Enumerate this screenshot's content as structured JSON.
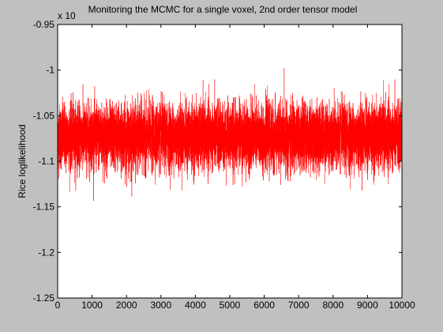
{
  "chart_data": {
    "type": "line",
    "title": "Monitoring the MCMC for a single voxel,  2nd order tensor model",
    "xlabel": "",
    "ylabel": "Rice loglikelihood",
    "exponent_label": "x 10",
    "xlim": [
      0,
      10000
    ],
    "ylim": [
      -1.25,
      -0.95
    ],
    "xticks": [
      0,
      1000,
      2000,
      3000,
      4000,
      5000,
      6000,
      7000,
      8000,
      9000,
      10000
    ],
    "xtick_labels": [
      "0",
      "1000",
      "2000",
      "3000",
      "4000",
      "5000",
      "6000",
      "7000",
      "8000",
      "9000",
      "10000"
    ],
    "yticks": [
      -1.25,
      -1.2,
      -1.15,
      -1.1,
      -1.05,
      -1,
      -0.95
    ],
    "ytick_labels": [
      "-1.25",
      "-1.2",
      "-1.15",
      "-1.1",
      "-1.05",
      "-1",
      "-0.95"
    ],
    "series": [
      {
        "color": "#ff0000",
        "n_points": 10000,
        "mean": -1.073,
        "band_low": -1.11,
        "band_high": -1.04,
        "max_value": -0.998,
        "min_value": -1.16
      }
    ],
    "grid": false,
    "colors": {
      "background": "#c0c0c0",
      "axes": "#ffffff",
      "line": "#ff0000"
    }
  }
}
